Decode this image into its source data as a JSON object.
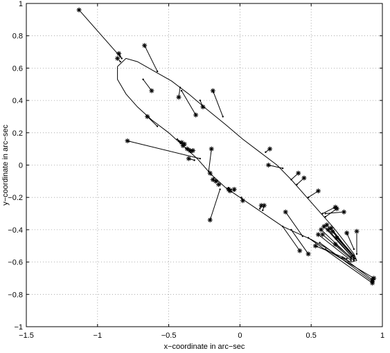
{
  "chart_data": {
    "type": "scatter",
    "xlabel": "x−coordinate in arc−sec",
    "ylabel": "y−coordinate in arc−sec",
    "xlim": [
      -1.5,
      1.0
    ],
    "ylim": [
      -1.0,
      1.0
    ],
    "xticks": [
      -1.5,
      -1,
      -0.5,
      0,
      0.5,
      1
    ],
    "yticks": [
      -1,
      -0.8,
      -0.6,
      -0.4,
      -0.2,
      0,
      0.2,
      0.4,
      0.6,
      0.8,
      1
    ],
    "xtick_labels": [
      "−1.5",
      "−1",
      "−0.5",
      "0",
      "0.5",
      "1"
    ],
    "ytick_labels": [
      "−1",
      "−0.8",
      "−0.6",
      "−0.4",
      "−0.2",
      "0",
      "0.2",
      "0.4",
      "0.6",
      "0.8",
      "1"
    ],
    "grid": true,
    "orbit_curve": [
      [
        -0.86,
        0.61
      ],
      [
        -0.8,
        0.66
      ],
      [
        -0.72,
        0.64
      ],
      [
        -0.6,
        0.58
      ],
      [
        -0.48,
        0.52
      ],
      [
        -0.36,
        0.44
      ],
      [
        -0.24,
        0.35
      ],
      [
        -0.1,
        0.25
      ],
      [
        0.02,
        0.16
      ],
      [
        0.14,
        0.08
      ],
      [
        0.26,
        0.0
      ],
      [
        0.36,
        -0.09
      ],
      [
        0.46,
        -0.19
      ],
      [
        0.56,
        -0.29
      ],
      [
        0.66,
        -0.39
      ],
      [
        0.74,
        -0.48
      ],
      [
        0.8,
        -0.55
      ],
      [
        0.82,
        -0.59
      ],
      [
        0.78,
        -0.6
      ],
      [
        0.7,
        -0.57
      ],
      [
        0.62,
        -0.52
      ],
      [
        0.5,
        -0.46
      ],
      [
        0.4,
        -0.42
      ],
      [
        0.3,
        -0.38
      ],
      [
        0.2,
        -0.32
      ],
      [
        0.1,
        -0.26
      ],
      [
        0.0,
        -0.2
      ],
      [
        -0.1,
        -0.14
      ],
      [
        -0.2,
        -0.06
      ],
      [
        -0.3,
        0.04
      ],
      [
        -0.4,
        0.12
      ],
      [
        -0.5,
        0.2
      ],
      [
        -0.62,
        0.28
      ],
      [
        -0.72,
        0.36
      ],
      [
        -0.8,
        0.44
      ],
      [
        -0.86,
        0.53
      ],
      [
        -0.86,
        0.61
      ]
    ],
    "observations": [
      {
        "obs": [
          -1.13,
          0.96
        ],
        "model": [
          -0.84,
          0.67
        ]
      },
      {
        "obs": [
          -0.85,
          0.69
        ],
        "model": [
          -0.83,
          0.66
        ]
      },
      {
        "obs": [
          -0.86,
          0.66
        ],
        "model": [
          -0.84,
          0.64
        ]
      },
      {
        "obs": [
          -0.67,
          0.74
        ],
        "model": [
          -0.58,
          0.58
        ]
      },
      {
        "obs": [
          -0.62,
          0.46
        ],
        "model": [
          -0.68,
          0.53
        ]
      },
      {
        "obs": [
          -0.43,
          0.42
        ],
        "model": [
          -0.42,
          0.48
        ]
      },
      {
        "obs": [
          -0.31,
          0.31
        ],
        "model": [
          -0.41,
          0.46
        ]
      },
      {
        "obs": [
          -0.26,
          0.36
        ],
        "model": [
          -0.28,
          0.4
        ]
      },
      {
        "obs": [
          -0.19,
          0.46
        ],
        "model": [
          -0.12,
          0.3
        ]
      },
      {
        "obs": [
          -0.65,
          0.3
        ],
        "model": [
          -0.58,
          0.24
        ]
      },
      {
        "obs": [
          -0.79,
          0.15
        ],
        "model": [
          -0.28,
          0.04
        ]
      },
      {
        "obs": [
          -0.41,
          0.14
        ],
        "model": [
          -0.44,
          0.16
        ]
      },
      {
        "obs": [
          -0.4,
          0.12
        ],
        "model": [
          -0.43,
          0.15
        ]
      },
      {
        "obs": [
          -0.39,
          0.13
        ],
        "model": [
          -0.42,
          0.14
        ]
      },
      {
        "obs": [
          -0.37,
          0.1
        ],
        "model": [
          -0.36,
          0.1
        ]
      },
      {
        "obs": [
          -0.35,
          0.09
        ],
        "model": [
          -0.34,
          0.08
        ]
      },
      {
        "obs": [
          -0.33,
          0.09
        ],
        "model": [
          -0.34,
          0.09
        ]
      },
      {
        "obs": [
          -0.36,
          0.04
        ],
        "model": [
          -0.32,
          0.03
        ]
      },
      {
        "obs": [
          -0.2,
          0.1
        ],
        "model": [
          -0.22,
          -0.04
        ]
      },
      {
        "obs": [
          -0.21,
          -0.05
        ],
        "model": [
          -0.2,
          -0.06
        ]
      },
      {
        "obs": [
          -0.19,
          -0.09
        ],
        "model": [
          -0.18,
          -0.08
        ]
      },
      {
        "obs": [
          -0.17,
          -0.1
        ],
        "model": [
          -0.16,
          -0.1
        ]
      },
      {
        "obs": [
          -0.15,
          -0.12
        ],
        "model": [
          -0.14,
          -0.12
        ]
      },
      {
        "obs": [
          -0.08,
          -0.15
        ],
        "model": [
          -0.08,
          -0.14
        ]
      },
      {
        "obs": [
          -0.07,
          -0.16
        ],
        "model": [
          -0.06,
          -0.15
        ]
      },
      {
        "obs": [
          -0.04,
          -0.15
        ],
        "model": [
          -0.04,
          -0.16
        ]
      },
      {
        "obs": [
          0.02,
          -0.22
        ],
        "model": [
          0.01,
          -0.2
        ]
      },
      {
        "obs": [
          -0.21,
          -0.34
        ],
        "model": [
          -0.14,
          -0.15
        ]
      },
      {
        "obs": [
          0.15,
          -0.25
        ],
        "model": [
          0.14,
          -0.27
        ]
      },
      {
        "obs": [
          0.17,
          -0.25
        ],
        "model": [
          0.16,
          -0.28
        ]
      },
      {
        "obs": [
          0.21,
          0.1
        ],
        "model": [
          0.18,
          0.08
        ]
      },
      {
        "obs": [
          0.2,
          0.0
        ],
        "model": [
          0.3,
          -0.02
        ]
      },
      {
        "obs": [
          0.41,
          -0.05
        ],
        "model": [
          0.36,
          -0.09
        ]
      },
      {
        "obs": [
          0.45,
          -0.08
        ],
        "model": [
          0.4,
          -0.12
        ]
      },
      {
        "obs": [
          0.55,
          -0.16
        ],
        "model": [
          0.48,
          -0.2
        ]
      },
      {
        "obs": [
          0.67,
          -0.26
        ],
        "model": [
          0.58,
          -0.3
        ]
      },
      {
        "obs": [
          0.68,
          -0.27
        ],
        "model": [
          0.6,
          -0.32
        ]
      },
      {
        "obs": [
          0.73,
          -0.29
        ],
        "model": [
          0.6,
          -0.3
        ]
      },
      {
        "obs": [
          0.32,
          -0.29
        ],
        "model": [
          0.44,
          -0.44
        ]
      },
      {
        "obs": [
          0.42,
          -0.53
        ],
        "model": [
          0.3,
          -0.38
        ]
      },
      {
        "obs": [
          0.48,
          -0.55
        ],
        "model": [
          0.36,
          -0.4
        ]
      },
      {
        "obs": [
          0.53,
          -0.5
        ],
        "model": [
          0.75,
          -0.58
        ]
      },
      {
        "obs": [
          0.55,
          -0.43
        ],
        "model": [
          0.78,
          -0.59
        ]
      },
      {
        "obs": [
          0.57,
          -0.4
        ],
        "model": [
          0.8,
          -0.59
        ]
      },
      {
        "obs": [
          0.59,
          -0.38
        ],
        "model": [
          0.8,
          -0.58
        ]
      },
      {
        "obs": [
          0.61,
          -0.37
        ],
        "model": [
          0.81,
          -0.58
        ]
      },
      {
        "obs": [
          0.62,
          -0.4
        ],
        "model": [
          0.8,
          -0.58
        ]
      },
      {
        "obs": [
          0.64,
          -0.39
        ],
        "model": [
          0.8,
          -0.57
        ]
      },
      {
        "obs": [
          0.65,
          -0.41
        ],
        "model": [
          0.8,
          -0.56
        ]
      },
      {
        "obs": [
          0.58,
          -0.43
        ],
        "model": [
          0.78,
          -0.58
        ]
      },
      {
        "obs": [
          0.68,
          -0.45
        ],
        "model": [
          0.79,
          -0.56
        ]
      },
      {
        "obs": [
          0.67,
          -0.49
        ],
        "model": [
          0.78,
          -0.57
        ]
      },
      {
        "obs": [
          0.75,
          -0.42
        ],
        "model": [
          0.8,
          -0.52
        ]
      },
      {
        "obs": [
          0.82,
          -0.41
        ],
        "model": [
          0.82,
          -0.55
        ]
      },
      {
        "obs": [
          0.93,
          -0.71
        ],
        "model": [
          0.72,
          -0.57
        ]
      },
      {
        "obs": [
          0.94,
          -0.7
        ],
        "model": [
          0.6,
          -0.52
        ]
      },
      {
        "obs": [
          0.93,
          -0.72
        ],
        "model": [
          0.56,
          -0.48
        ]
      },
      {
        "obs": [
          0.93,
          -0.73
        ],
        "model": [
          0.48,
          -0.45
        ]
      }
    ]
  }
}
